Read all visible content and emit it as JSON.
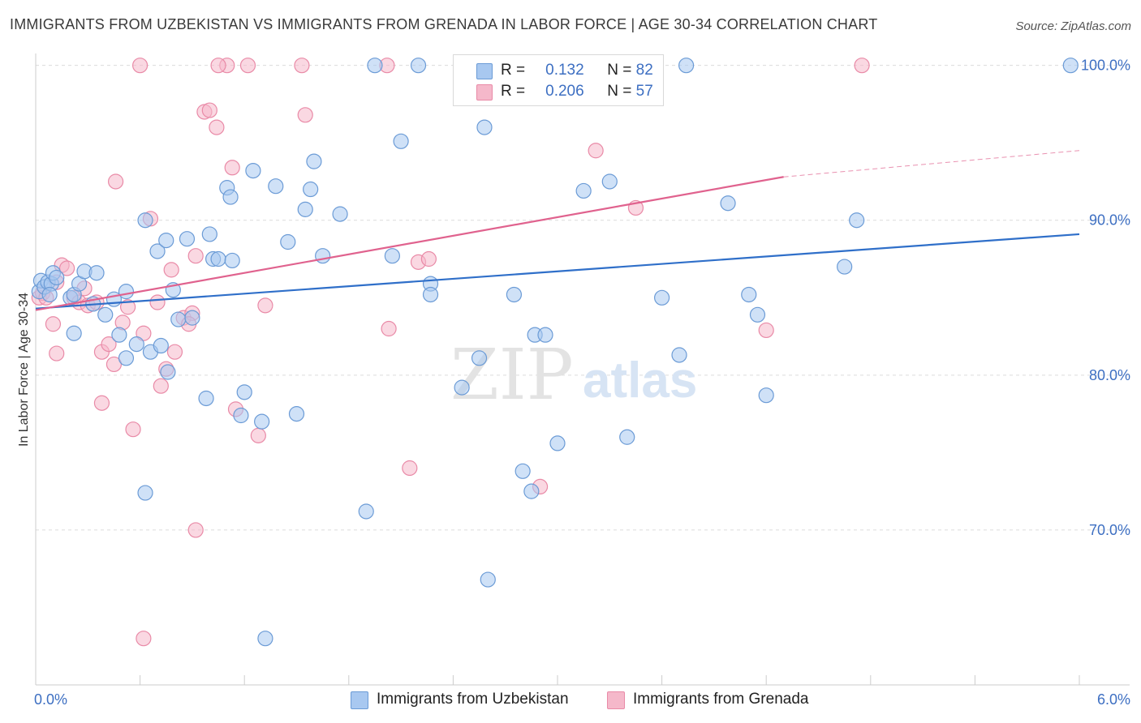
{
  "title": "IMMIGRANTS FROM UZBEKISTAN VS IMMIGRANTS FROM GRENADA IN LABOR FORCE | AGE 30-34 CORRELATION CHART",
  "source": "Source: ZipAtlas.com",
  "watermark": {
    "zip": "ZIP",
    "atlas": "atlas"
  },
  "legend": {
    "rows": [
      {
        "r_label": "R =",
        "r_value": "0.132",
        "n_label": "N =",
        "n_value": "82"
      },
      {
        "r_label": "R =",
        "r_value": "0.206",
        "n_label": "N =",
        "n_value": "57"
      }
    ]
  },
  "bottom_legend": {
    "series1": "Immigrants from Uzbekistan",
    "series2": "Immigrants from Grenada"
  },
  "colors": {
    "series1_fill": "#a8c8f0",
    "series1_stroke": "#6b9bd6",
    "series1_line": "#2f6fc9",
    "series2_fill": "#f5b8ca",
    "series2_stroke": "#e98aa7",
    "series2_line": "#e0628e",
    "tick_text": "#3d6fc2",
    "grid": "#dcdcdc"
  },
  "chart_data": {
    "type": "scatter",
    "title": "IMMIGRANTS FROM UZBEKISTAN VS IMMIGRANTS FROM GRENADA IN LABOR FORCE | AGE 30-34 CORRELATION CHART",
    "xlabel": "",
    "ylabel": "In Labor Force | Age 30-34",
    "xlim": [
      0,
      6
    ],
    "ylim": [
      60,
      101.5
    ],
    "x_tick_labels": [
      {
        "value": 0,
        "label": "0.0%"
      },
      {
        "value": 6,
        "label": "6.0%"
      }
    ],
    "y_tick_labels": [
      {
        "value": 100,
        "label": "100.0%"
      },
      {
        "value": 90,
        "label": "90.0%"
      },
      {
        "value": 80,
        "label": "80.0%"
      },
      {
        "value": 70,
        "label": "70.0%"
      }
    ],
    "series": [
      {
        "name": "Immigrants from Uzbekistan",
        "r": 0.132,
        "n": 82,
        "trend": {
          "x0": 0,
          "y0": 84.3,
          "x1": 6,
          "y1": 89.1
        },
        "points": [
          [
            0.02,
            85.4
          ],
          [
            0.03,
            86.1
          ],
          [
            0.05,
            85.7
          ],
          [
            0.07,
            86.0
          ],
          [
            0.09,
            85.9
          ],
          [
            0.1,
            86.6
          ],
          [
            0.12,
            86.3
          ],
          [
            0.08,
            85.2
          ],
          [
            0.2,
            85.0
          ],
          [
            0.22,
            85.2
          ],
          [
            0.25,
            85.9
          ],
          [
            0.28,
            86.7
          ],
          [
            0.33,
            84.6
          ],
          [
            0.4,
            83.9
          ],
          [
            0.45,
            84.9
          ],
          [
            0.52,
            85.4
          ],
          [
            0.22,
            82.7
          ],
          [
            0.35,
            86.6
          ],
          [
            0.48,
            82.6
          ],
          [
            0.52,
            81.1
          ],
          [
            0.58,
            82.0
          ],
          [
            0.66,
            81.5
          ],
          [
            0.72,
            81.9
          ],
          [
            0.76,
            80.2
          ],
          [
            0.63,
            90.0
          ],
          [
            0.7,
            88.0
          ],
          [
            0.75,
            88.7
          ],
          [
            0.79,
            85.5
          ],
          [
            0.82,
            83.6
          ],
          [
            0.87,
            88.8
          ],
          [
            0.9,
            83.7
          ],
          [
            0.98,
            78.5
          ],
          [
            1.0,
            89.1
          ],
          [
            1.02,
            87.5
          ],
          [
            1.05,
            87.5
          ],
          [
            1.1,
            92.1
          ],
          [
            1.12,
            91.5
          ],
          [
            1.13,
            87.4
          ],
          [
            1.18,
            77.4
          ],
          [
            1.2,
            78.9
          ],
          [
            1.25,
            93.2
          ],
          [
            1.3,
            77.0
          ],
          [
            1.38,
            92.2
          ],
          [
            1.45,
            88.6
          ],
          [
            1.5,
            77.5
          ],
          [
            1.55,
            90.7
          ],
          [
            1.58,
            92.0
          ],
          [
            1.6,
            93.8
          ],
          [
            1.65,
            87.7
          ],
          [
            1.75,
            90.4
          ],
          [
            1.9,
            71.2
          ],
          [
            1.95,
            100.0
          ],
          [
            2.05,
            87.7
          ],
          [
            2.1,
            95.1
          ],
          [
            2.2,
            100.0
          ],
          [
            2.27,
            85.9
          ],
          [
            2.27,
            85.2
          ],
          [
            2.45,
            79.2
          ],
          [
            2.55,
            81.1
          ],
          [
            2.58,
            96.0
          ],
          [
            2.6,
            66.8
          ],
          [
            2.75,
            85.2
          ],
          [
            2.8,
            73.8
          ],
          [
            2.85,
            72.5
          ],
          [
            2.87,
            82.6
          ],
          [
            2.93,
            82.6
          ],
          [
            3.0,
            75.6
          ],
          [
            3.15,
            91.9
          ],
          [
            3.3,
            92.5
          ],
          [
            3.4,
            76.0
          ],
          [
            3.6,
            85.0
          ],
          [
            3.7,
            81.3
          ],
          [
            3.74,
            100.0
          ],
          [
            3.98,
            91.1
          ],
          [
            4.1,
            85.2
          ],
          [
            4.15,
            83.9
          ],
          [
            4.2,
            78.7
          ],
          [
            4.65,
            87.0
          ],
          [
            4.72,
            90.0
          ],
          [
            5.95,
            100.0
          ],
          [
            0.63,
            72.4
          ],
          [
            1.32,
            63.0
          ]
        ]
      },
      {
        "name": "Immigrants from Grenada",
        "r": 0.206,
        "n": 57,
        "trend": {
          "x0": 0,
          "y0": 84.2,
          "x1": 4.3,
          "y1": 92.8,
          "dash_to_x": 6,
          "dash_to_y": 94.5
        },
        "points": [
          [
            0.02,
            85.0
          ],
          [
            0.04,
            85.3
          ],
          [
            0.06,
            85.0
          ],
          [
            0.1,
            83.3
          ],
          [
            0.12,
            86.0
          ],
          [
            0.15,
            87.1
          ],
          [
            0.18,
            86.9
          ],
          [
            0.22,
            85.0
          ],
          [
            0.25,
            84.7
          ],
          [
            0.28,
            85.6
          ],
          [
            0.3,
            84.5
          ],
          [
            0.35,
            84.7
          ],
          [
            0.38,
            81.5
          ],
          [
            0.42,
            82.0
          ],
          [
            0.45,
            80.7
          ],
          [
            0.5,
            83.4
          ],
          [
            0.53,
            84.4
          ],
          [
            0.56,
            76.5
          ],
          [
            0.62,
            82.7
          ],
          [
            0.66,
            90.1
          ],
          [
            0.7,
            84.7
          ],
          [
            0.72,
            79.3
          ],
          [
            0.75,
            80.4
          ],
          [
            0.78,
            86.8
          ],
          [
            0.8,
            81.5
          ],
          [
            0.85,
            83.7
          ],
          [
            0.9,
            84.0
          ],
          [
            0.92,
            87.7
          ],
          [
            0.97,
            97.0
          ],
          [
            1.0,
            97.1
          ],
          [
            1.04,
            96.0
          ],
          [
            1.1,
            100.0
          ],
          [
            1.13,
            93.4
          ],
          [
            1.15,
            77.8
          ],
          [
            1.22,
            100.0
          ],
          [
            1.28,
            76.1
          ],
          [
            1.32,
            84.5
          ],
          [
            1.53,
            100.0
          ],
          [
            1.55,
            96.8
          ],
          [
            0.6,
            100.0
          ],
          [
            0.46,
            92.5
          ],
          [
            0.38,
            78.2
          ],
          [
            0.92,
            70.0
          ],
          [
            1.05,
            100.0
          ],
          [
            0.62,
            63.0
          ],
          [
            2.02,
            100.0
          ],
          [
            2.03,
            83.0
          ],
          [
            2.15,
            74.0
          ],
          [
            2.2,
            87.3
          ],
          [
            2.26,
            87.5
          ],
          [
            2.9,
            72.8
          ],
          [
            3.22,
            94.5
          ],
          [
            3.45,
            90.8
          ],
          [
            4.2,
            82.9
          ],
          [
            4.75,
            100.0
          ],
          [
            0.12,
            81.4
          ],
          [
            0.88,
            83.3
          ]
        ]
      }
    ]
  }
}
